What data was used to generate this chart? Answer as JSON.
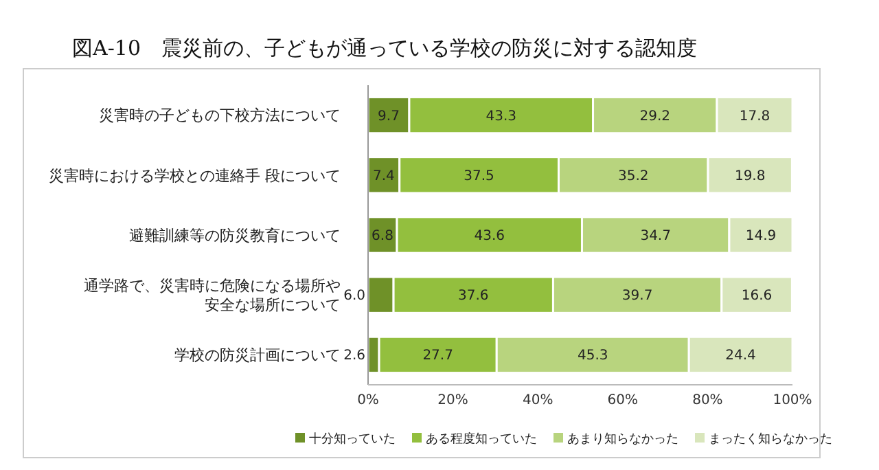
{
  "chart_data": {
    "type": "bar",
    "orientation": "horizontal",
    "stacked": true,
    "title": "図A-10　震災前の、子どもが通っている学校の防災に対する認知度",
    "categories": [
      "災害時の子どもの下校方法について",
      "災害時における学校との連絡手 段について",
      "避難訓練等の防災教育について",
      "通学路で、災害時に危険になる場所や安全な場所について",
      "学校の防災計画について"
    ],
    "series": [
      {
        "name": "十分知っていた",
        "color": "#6f9128",
        "values": [
          9.7,
          7.4,
          6.8,
          6.0,
          2.6
        ],
        "value_labels": [
          "9.7",
          "7.4",
          "6.8",
          "6.0",
          "2.6"
        ]
      },
      {
        "name": "ある程度知っていた",
        "color": "#93bf3e",
        "values": [
          43.3,
          37.5,
          43.6,
          37.6,
          27.7
        ],
        "value_labels": [
          "43.3",
          "37.5",
          "43.6",
          "37.6",
          "27.7"
        ]
      },
      {
        "name": "あまり知らなかった",
        "color": "#b8d47e",
        "values": [
          29.2,
          35.2,
          34.7,
          39.7,
          45.3
        ],
        "value_labels": [
          "29.2",
          "35.2",
          "34.7",
          "39.7",
          "45.3"
        ]
      },
      {
        "name": "まったく知らなかった",
        "color": "#d9e6bc",
        "values": [
          17.8,
          19.8,
          14.9,
          16.6,
          24.4
        ],
        "value_labels": [
          "17.8",
          "19.8",
          "14.9",
          "16.6",
          "24.4"
        ]
      }
    ],
    "xlim": [
      0,
      100
    ],
    "xticks": [
      {
        "value": 0,
        "label": "0%"
      },
      {
        "value": 20,
        "label": "20%"
      },
      {
        "value": 40,
        "label": "40%"
      },
      {
        "value": 60,
        "label": "60%"
      },
      {
        "value": 80,
        "label": "80%"
      },
      {
        "value": 100,
        "label": "100%"
      }
    ],
    "legend": "bottom"
  }
}
